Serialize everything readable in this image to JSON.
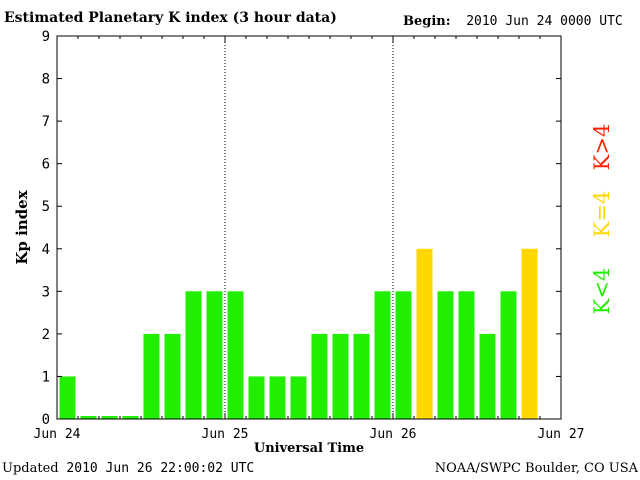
{
  "title": "Estimated Planetary K index (3 hour data)",
  "begin_label": "Begin:",
  "begin_value": "2010 Jun 24 0000 UTC",
  "updated_label": "Updated",
  "updated_value": "2010 Jun 26 22:00:02 UTC",
  "credit": "NOAA/SWPC Boulder, CO USA",
  "colors": {
    "low": "#22ee00",
    "storm_threshold": "#ffd700",
    "high": "#ff2200",
    "axis": "#000000",
    "day_divider": "#000000"
  },
  "chart_data": {
    "type": "bar",
    "ylabel": "Kp index",
    "xlabel": "Universal Time",
    "ylim": [
      0,
      9
    ],
    "yticks": [
      0,
      1,
      2,
      3,
      4,
      5,
      6,
      7,
      8,
      9
    ],
    "xticks": [
      "Jun 24",
      "Jun 25",
      "Jun 26",
      "Jun 27"
    ],
    "interval_hours": 3,
    "values": [
      1,
      0,
      0,
      0,
      2,
      2,
      3,
      3,
      3,
      1,
      1,
      1,
      2,
      2,
      2,
      3,
      3,
      4,
      3,
      3,
      2,
      3,
      4
    ],
    "legend": [
      {
        "label": "K<4",
        "color": "#22ee00"
      },
      {
        "label": "K=4",
        "color": "#ffd700"
      },
      {
        "label": "K>4",
        "color": "#ff2200"
      }
    ],
    "legend_position": "right",
    "grid": false
  }
}
